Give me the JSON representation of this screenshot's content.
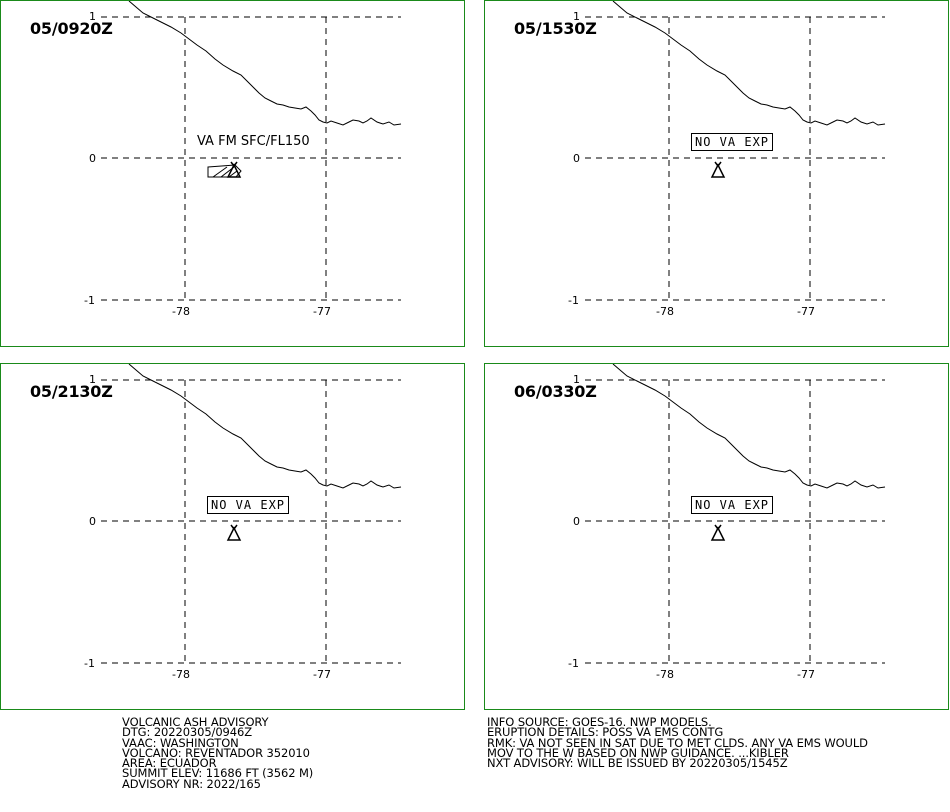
{
  "panels": [
    {
      "time": "05/0920Z",
      "va_label": "VA FM SFC/FL150",
      "no_va_label": ""
    },
    {
      "time": "05/1530Z",
      "va_label": "",
      "no_va_label": "NO VA EXP"
    },
    {
      "time": "05/2130Z",
      "va_label": "",
      "no_va_label": "NO VA EXP"
    },
    {
      "time": "06/0330Z",
      "va_label": "",
      "no_va_label": "NO VA EXP"
    }
  ],
  "axes": {
    "lat_labels": [
      "1",
      "0",
      "-1"
    ],
    "lon_labels": [
      "-78",
      "-77"
    ]
  },
  "advisory_left": [
    "VOLCANIC ASH ADVISORY",
    "DTG: 20220305/0946Z",
    "VAAC: WASHINGTON",
    "VOLCANO: REVENTADOR 352010",
    "AREA: ECUADOR",
    "SUMMIT ELEV: 11686 FT (3562 M)",
    "ADVISORY NR: 2022/165"
  ],
  "advisory_right": [
    "INFO SOURCE: GOES-16. NWP MODELS.",
    "ERUPTION DETAILS: POSS VA EMS CONTG",
    "RMK: VA NOT SEEN IN SAT DUE TO MET CLDS. ANY VA EMS WOULD",
    "MOV TO THE W BASED ON NWP GUIDANCE. ...KIBLER",
    "NXT ADVISORY: WILL BE ISSUED BY 20220305/1545Z"
  ],
  "colors": {
    "panel_border": "#1a8a1a"
  },
  "icons": {
    "volcano": "volcano-triangle-icon"
  }
}
